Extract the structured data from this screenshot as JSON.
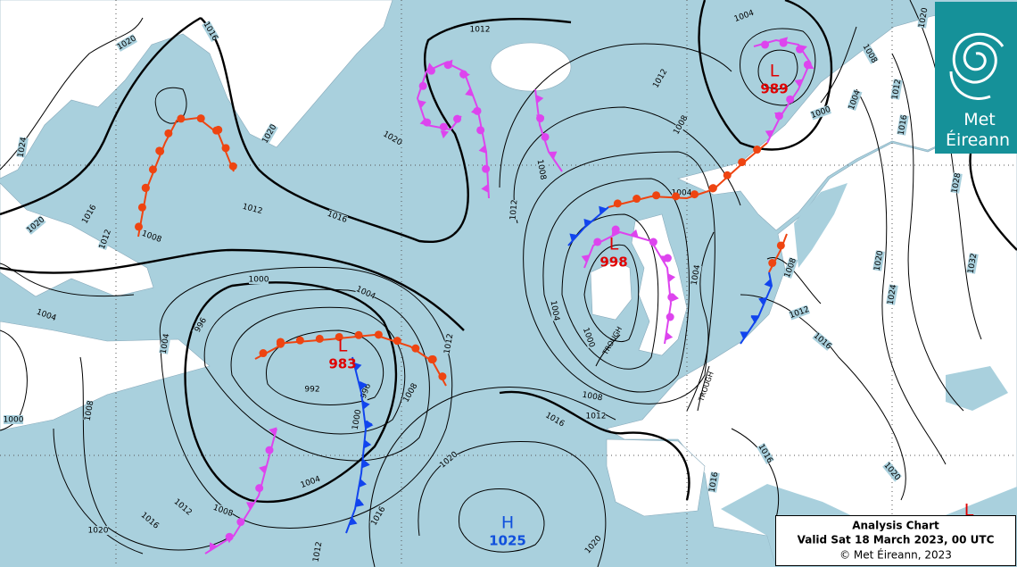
{
  "logo": {
    "line1": "Met",
    "line2": "Éireann"
  },
  "caption": {
    "title": "Analysis Chart",
    "valid": "Valid Sat 18 March 2023, 00 UTC",
    "copyright": "© Met Éireann, 2023"
  },
  "pressure_centres": [
    {
      "symbol": "L",
      "value": 989
    },
    {
      "symbol": "L",
      "value": 998
    },
    {
      "symbol": "L",
      "value": 983
    },
    {
      "symbol": "H",
      "value": 1025
    },
    {
      "symbol": "L"
    }
  ],
  "troughs": [
    "TROUGH",
    "TROUGH"
  ],
  "isobar_labels": [
    1016,
    1020,
    1024,
    1020,
    1016,
    1012,
    1008,
    1020,
    1020,
    1016,
    1012,
    1012,
    1004,
    1012,
    1008,
    1008,
    1012,
    1004,
    1004,
    1000,
    1008,
    1012,
    1016,
    1000,
    1004,
    1004,
    1004,
    996,
    992,
    996,
    1000,
    1004,
    1008,
    1012,
    1008,
    1012,
    1016,
    1020,
    1016,
    1012,
    1020,
    1020,
    1000,
    1008,
    1016,
    1016,
    1012,
    1016,
    1008,
    1004,
    1020,
    1024,
    1028,
    1032,
    1000,
    1004,
    1008,
    1012,
    1016,
    1020,
    1020
  ]
}
